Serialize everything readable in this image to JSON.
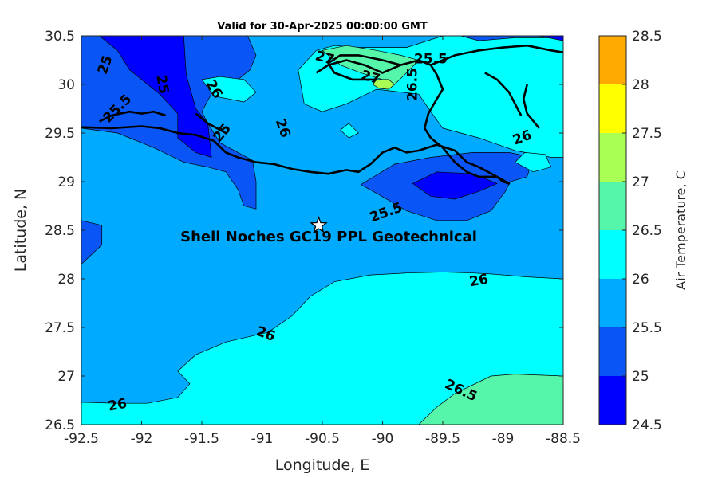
{
  "title": "Valid for 30-Apr-2025 00:00:00 GMT",
  "colors": {
    "levels": [
      "#0000ff",
      "#0a55f5",
      "#00aaff",
      "#00ffff",
      "#55f5aa",
      "#aaff55",
      "#ffff00",
      "#ffaa00",
      "#ff5500"
    ],
    "contour_line": "#000000",
    "coastline": "#000000",
    "marker_fill": "#ffffff"
  },
  "annotation": {
    "label": "Shell Noches   GC19 PPL  Geotechnical",
    "lon": -90.53,
    "lat": 28.55,
    "marker": "star"
  },
  "contour_labels": [
    {
      "text": "25",
      "lon": -92.3,
      "lat": 30.2,
      "rot": 70
    },
    {
      "text": "25",
      "lon": -91.83,
      "lat": 30.0,
      "rot": -80
    },
    {
      "text": "25.5",
      "lon": -92.2,
      "lat": 29.75,
      "rot": 45
    },
    {
      "text": "26",
      "lon": -91.4,
      "lat": 29.95,
      "rot": -60
    },
    {
      "text": "26",
      "lon": -90.83,
      "lat": 29.55,
      "rot": -70
    },
    {
      "text": "25",
      "lon": -91.33,
      "lat": 29.5,
      "rot": 50
    },
    {
      "text": "27",
      "lon": -90.48,
      "lat": 30.27,
      "rot": -15
    },
    {
      "text": "27",
      "lon": -90.1,
      "lat": 30.07,
      "rot": -15
    },
    {
      "text": "26.5",
      "lon": -89.75,
      "lat": 30.0,
      "rot": 90
    },
    {
      "text": "25.5",
      "lon": -89.6,
      "lat": 30.26,
      "rot": 0
    },
    {
      "text": "26",
      "lon": -88.84,
      "lat": 29.45,
      "rot": 20
    },
    {
      "text": "25.5",
      "lon": -89.97,
      "lat": 28.68,
      "rot": 20
    },
    {
      "text": "26",
      "lon": -89.2,
      "lat": 27.98,
      "rot": 10
    },
    {
      "text": "26",
      "lon": -90.97,
      "lat": 27.43,
      "rot": -20
    },
    {
      "text": "26.5",
      "lon": -89.35,
      "lat": 26.85,
      "rot": -25
    },
    {
      "text": "26",
      "lon": -92.2,
      "lat": 26.7,
      "rot": 10
    }
  ],
  "chart_data": {
    "type": "heatmap",
    "subtype": "filled-contour-map",
    "title": "Valid for 30-Apr-2025 00:00:00 GMT",
    "xlabel": "Longitude, E",
    "ylabel": "Latitude, N",
    "xlim": [
      -92.5,
      -88.5
    ],
    "ylim": [
      26.5,
      30.5
    ],
    "xticks": [
      "-92.5",
      "-92",
      "-91.5",
      "-91",
      "-90.5",
      "-90",
      "-89.5",
      "-89",
      "-88.5"
    ],
    "yticks": [
      "26.5",
      "27",
      "27.5",
      "28",
      "28.5",
      "29",
      "29.5",
      "30",
      "30.5"
    ],
    "colorbar": {
      "label": "Air Temperature, C",
      "levels": [
        24.5,
        25,
        25.5,
        26,
        26.5,
        27,
        27.5,
        28,
        28.5
      ],
      "ticks": [
        "24.5",
        "25",
        "25.5",
        "26",
        "26.5",
        "27",
        "27.5",
        "28",
        "28.5"
      ]
    },
    "regions": [
      {
        "value": 25.25,
        "polygon": [
          [
            -92.5,
            28.6
          ],
          [
            -92.33,
            28.55
          ],
          [
            -92.33,
            28.35
          ],
          [
            -92.5,
            28.15
          ]
        ]
      },
      {
        "value": 26.25,
        "polygon": [
          [
            -92.5,
            26.5
          ],
          [
            -88.5,
            26.5
          ],
          [
            -88.5,
            28.0
          ],
          [
            -88.8,
            28.02
          ],
          [
            -89.1,
            28.05
          ],
          [
            -89.25,
            28.06
          ],
          [
            -89.5,
            28.07
          ],
          [
            -89.8,
            28.06
          ],
          [
            -90.1,
            28.04
          ],
          [
            -90.4,
            27.97
          ],
          [
            -90.6,
            27.82
          ],
          [
            -90.75,
            27.62
          ],
          [
            -90.95,
            27.45
          ],
          [
            -91.3,
            27.35
          ],
          [
            -91.55,
            27.22
          ],
          [
            -91.7,
            27.05
          ],
          [
            -91.6,
            26.92
          ],
          [
            -91.7,
            26.78
          ],
          [
            -91.95,
            26.72
          ],
          [
            -92.2,
            26.72
          ],
          [
            -92.5,
            26.73
          ]
        ]
      },
      {
        "value": 26.75,
        "polygon": [
          [
            -89.7,
            26.5
          ],
          [
            -88.5,
            26.5
          ],
          [
            -88.5,
            27.0
          ],
          [
            -88.9,
            27.02
          ],
          [
            -89.1,
            27.0
          ],
          [
            -89.4,
            26.82
          ],
          [
            -89.55,
            26.68
          ]
        ]
      },
      {
        "value": 25.25,
        "polygon": [
          [
            -90.18,
            28.97
          ],
          [
            -90.05,
            28.88
          ],
          [
            -89.8,
            28.7
          ],
          [
            -89.55,
            28.6
          ],
          [
            -89.3,
            28.6
          ],
          [
            -89.1,
            28.7
          ],
          [
            -88.98,
            28.9
          ],
          [
            -88.94,
            29.0
          ],
          [
            -88.8,
            29.05
          ],
          [
            -88.75,
            29.25
          ],
          [
            -88.95,
            29.3
          ],
          [
            -89.25,
            29.3
          ],
          [
            -89.6,
            29.25
          ],
          [
            -89.9,
            29.18
          ]
        ]
      },
      {
        "value": 24.75,
        "polygon": [
          [
            -89.75,
            28.98
          ],
          [
            -89.6,
            28.85
          ],
          [
            -89.4,
            28.82
          ],
          [
            -89.2,
            28.9
          ],
          [
            -89.05,
            28.98
          ],
          [
            -89.25,
            29.08
          ],
          [
            -89.55,
            29.1
          ]
        ]
      },
      {
        "value": 25.25,
        "polygon": [
          [
            -92.5,
            29.55
          ],
          [
            -92.2,
            29.5
          ],
          [
            -91.9,
            29.35
          ],
          [
            -91.65,
            29.2
          ],
          [
            -91.45,
            29.15
          ],
          [
            -91.3,
            29.1
          ],
          [
            -91.2,
            28.92
          ],
          [
            -91.15,
            28.75
          ],
          [
            -91.05,
            28.72
          ],
          [
            -91.05,
            29.0
          ],
          [
            -91.08,
            29.22
          ],
          [
            -91.35,
            29.4
          ],
          [
            -91.45,
            29.6
          ],
          [
            -91.5,
            29.72
          ],
          [
            -91.4,
            29.95
          ],
          [
            -91.2,
            30.05
          ],
          [
            -91.1,
            30.15
          ],
          [
            -91.05,
            30.3
          ],
          [
            -91.12,
            30.5
          ],
          [
            -92.5,
            30.5
          ]
        ]
      },
      {
        "value": 24.75,
        "polygon": [
          [
            -92.35,
            30.5
          ],
          [
            -92.2,
            30.35
          ],
          [
            -92.1,
            30.15
          ],
          [
            -91.85,
            29.9
          ],
          [
            -91.7,
            29.7
          ],
          [
            -91.7,
            29.45
          ],
          [
            -91.55,
            29.3
          ],
          [
            -91.42,
            29.25
          ],
          [
            -91.45,
            29.6
          ],
          [
            -91.55,
            29.75
          ],
          [
            -91.63,
            30.1
          ],
          [
            -91.65,
            30.5
          ]
        ]
      },
      {
        "value": 26.25,
        "polygon": [
          [
            -90.65,
            29.8
          ],
          [
            -90.5,
            29.72
          ],
          [
            -90.3,
            29.8
          ],
          [
            -90.05,
            29.95
          ],
          [
            -89.7,
            29.9
          ],
          [
            -89.6,
            29.72
          ],
          [
            -89.5,
            29.55
          ],
          [
            -89.2,
            29.45
          ],
          [
            -88.9,
            29.32
          ],
          [
            -88.6,
            29.25
          ],
          [
            -88.5,
            29.25
          ],
          [
            -88.5,
            30.5
          ],
          [
            -89.5,
            30.5
          ],
          [
            -89.8,
            30.38
          ],
          [
            -90.2,
            30.38
          ],
          [
            -90.4,
            30.4
          ],
          [
            -90.55,
            30.35
          ],
          [
            -90.7,
            30.15
          ]
        ]
      },
      {
        "value": 26.75,
        "polygon": [
          [
            -90.5,
            30.35
          ],
          [
            -90.35,
            30.2
          ],
          [
            -90.18,
            30.12
          ],
          [
            -90.0,
            30.05
          ],
          [
            -89.9,
            30.0
          ],
          [
            -89.8,
            30.12
          ],
          [
            -89.7,
            30.25
          ],
          [
            -89.85,
            30.3
          ],
          [
            -90.05,
            30.35
          ],
          [
            -90.3,
            30.4
          ]
        ]
      },
      {
        "value": 27.25,
        "polygon": [
          [
            -90.08,
            30.0
          ],
          [
            -90.03,
            29.96
          ],
          [
            -89.95,
            29.95
          ],
          [
            -89.9,
            30.0
          ],
          [
            -89.95,
            30.05
          ],
          [
            -90.05,
            30.05
          ]
        ]
      },
      {
        "value": 26.25,
        "polygon": [
          [
            -90.35,
            29.53
          ],
          [
            -90.28,
            29.45
          ],
          [
            -90.2,
            29.5
          ],
          [
            -90.28,
            29.6
          ]
        ]
      },
      {
        "value": 26.25,
        "polygon": [
          [
            -88.9,
            29.2
          ],
          [
            -88.75,
            29.1
          ],
          [
            -88.6,
            29.15
          ],
          [
            -88.65,
            29.28
          ],
          [
            -88.82,
            29.3
          ]
        ]
      },
      {
        "value": 25.25,
        "polygon": [
          [
            -88.5,
            30.48
          ],
          [
            -88.9,
            30.48
          ],
          [
            -89.2,
            30.45
          ],
          [
            -89.35,
            30.5
          ],
          [
            -88.5,
            30.5
          ]
        ]
      },
      {
        "value": 24.75,
        "polygon": [
          [
            -88.5,
            30.45
          ],
          [
            -88.7,
            30.5
          ],
          [
            -88.5,
            30.5
          ]
        ]
      },
      {
        "value": 26.25,
        "polygon": [
          [
            -91.5,
            30.05
          ],
          [
            -91.4,
            29.88
          ],
          [
            -91.15,
            29.82
          ],
          [
            -91.05,
            29.92
          ],
          [
            -91.15,
            30.05
          ],
          [
            -91.35,
            30.08
          ]
        ]
      }
    ],
    "coastline": [
      [
        [
          -92.5,
          29.56
        ],
        [
          -92.25,
          29.55
        ],
        [
          -92.0,
          29.57
        ],
        [
          -91.85,
          29.55
        ],
        [
          -91.7,
          29.5
        ],
        [
          -91.55,
          29.48
        ],
        [
          -91.4,
          29.42
        ],
        [
          -91.3,
          29.3
        ],
        [
          -91.2,
          29.25
        ],
        [
          -91.05,
          29.2
        ],
        [
          -90.9,
          29.18
        ],
        [
          -90.75,
          29.13
        ],
        [
          -90.6,
          29.1
        ],
        [
          -90.45,
          29.08
        ],
        [
          -90.3,
          29.12
        ],
        [
          -90.2,
          29.1
        ],
        [
          -90.1,
          29.18
        ],
        [
          -90.0,
          29.3
        ],
        [
          -89.9,
          29.35
        ],
        [
          -89.8,
          29.3
        ],
        [
          -89.7,
          29.32
        ],
        [
          -89.55,
          29.38
        ],
        [
          -89.4,
          29.32
        ],
        [
          -89.3,
          29.2
        ],
        [
          -89.2,
          29.15
        ],
        [
          -89.05,
          29.05
        ],
        [
          -89.0,
          29.0
        ],
        [
          -88.95,
          28.98
        ],
        [
          -89.05,
          29.05
        ],
        [
          -89.2,
          29.05
        ],
        [
          -89.3,
          29.1
        ],
        [
          -89.4,
          29.2
        ],
        [
          -89.5,
          29.35
        ],
        [
          -89.6,
          29.45
        ],
        [
          -89.65,
          29.55
        ],
        [
          -89.62,
          29.7
        ],
        [
          -89.55,
          29.85
        ],
        [
          -89.5,
          29.95
        ],
        [
          -89.55,
          30.1
        ],
        [
          -89.6,
          30.2
        ],
        [
          -89.7,
          30.25
        ],
        [
          -89.85,
          30.2
        ],
        [
          -90.0,
          30.12
        ],
        [
          -90.15,
          30.2
        ],
        [
          -90.3,
          30.25
        ],
        [
          -90.45,
          30.2
        ],
        [
          -90.55,
          30.12
        ]
      ],
      [
        [
          -89.6,
          30.2
        ],
        [
          -89.4,
          30.3
        ],
        [
          -89.2,
          30.35
        ],
        [
          -89.0,
          30.38
        ],
        [
          -88.8,
          30.4
        ],
        [
          -88.6,
          30.35
        ],
        [
          -88.5,
          30.33
        ]
      ],
      [
        [
          -92.35,
          29.62
        ],
        [
          -92.25,
          29.68
        ],
        [
          -92.1,
          29.72
        ],
        [
          -92.0,
          29.7
        ],
        [
          -91.9,
          29.72
        ],
        [
          -91.8,
          29.68
        ]
      ],
      [
        [
          -89.15,
          30.12
        ],
        [
          -89.05,
          30.05
        ],
        [
          -88.95,
          29.92
        ],
        [
          -88.9,
          29.8
        ],
        [
          -88.85,
          29.68
        ]
      ],
      [
        [
          -89.85,
          30.2
        ],
        [
          -90.0,
          30.25
        ],
        [
          -90.2,
          30.3
        ],
        [
          -90.35,
          30.3
        ],
        [
          -90.45,
          30.22
        ],
        [
          -90.4,
          30.12
        ],
        [
          -90.25,
          30.05
        ],
        [
          -90.05,
          30.05
        ]
      ],
      [
        [
          -88.7,
          29.55
        ],
        [
          -88.8,
          29.7
        ],
        [
          -88.83,
          29.85
        ],
        [
          -88.8,
          30.0
        ]
      ],
      [
        [
          -91.55,
          29.7
        ],
        [
          -91.45,
          29.6
        ],
        [
          -91.3,
          29.5
        ]
      ]
    ]
  }
}
